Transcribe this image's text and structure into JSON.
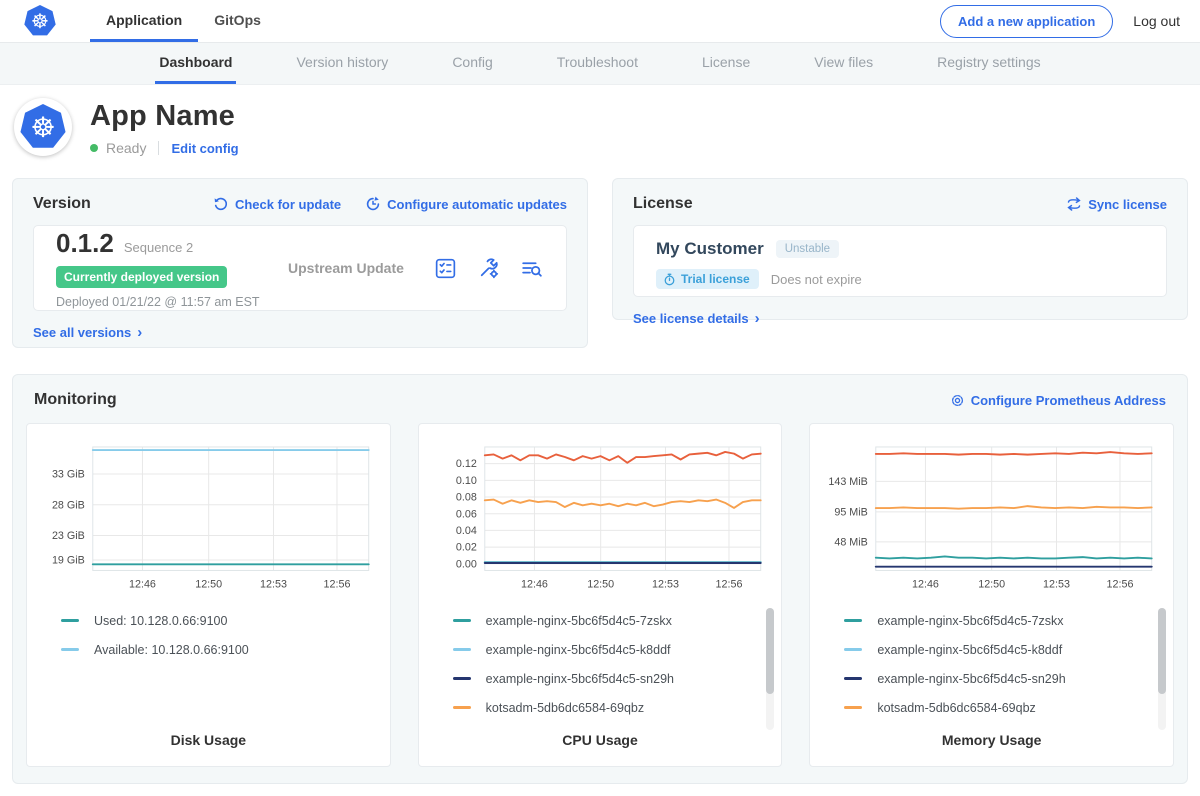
{
  "topnav": {
    "brand_icon": "kubernetes-logo",
    "tabs": [
      {
        "label": "Application",
        "active": true
      },
      {
        "label": "GitOps",
        "active": false
      }
    ],
    "add_app_button": "Add a new application",
    "logout_label": "Log out"
  },
  "subnav": {
    "tabs": [
      {
        "label": "Dashboard",
        "active": true
      },
      {
        "label": "Version history",
        "active": false
      },
      {
        "label": "Config",
        "active": false
      },
      {
        "label": "Troubleshoot",
        "active": false
      },
      {
        "label": "License",
        "active": false
      },
      {
        "label": "View files",
        "active": false
      },
      {
        "label": "Registry settings",
        "active": false
      }
    ]
  },
  "app_header": {
    "title": "App Name",
    "status": "Ready",
    "edit_config_label": "Edit config",
    "app_icon": "kubernetes-logo"
  },
  "version_card": {
    "title": "Version",
    "check_update_label": "Check for update",
    "auto_updates_label": "Configure automatic updates",
    "version_number": "0.1.2",
    "sequence": "Sequence 2",
    "deployed_badge": "Currently deployed version",
    "deployed_at": "Deployed 01/21/22 @ 11:57 am EST",
    "update_type": "Upstream Update",
    "action_icons": [
      "preflight-checks-icon",
      "config-wrench-icon",
      "deploy-logs-icon"
    ],
    "see_all_label": "See all versions"
  },
  "license_card": {
    "title": "License",
    "sync_label": "Sync license",
    "customer_name": "My Customer",
    "channel_badge": "Unstable",
    "type_badge": "Trial license",
    "expiry": "Does not expire",
    "details_label": "See license details"
  },
  "monitoring": {
    "title": "Monitoring",
    "configure_label": "Configure Prometheus Address"
  },
  "colors": {
    "accent_blue": "#326de6",
    "badge_green": "#45c789",
    "status_green": "#44bb66",
    "panel_bg": "#f4f8f9",
    "series_teal": "#2f9f9f",
    "series_lightblue": "#86cbea",
    "series_navy": "#25366f",
    "series_orange": "#f7a14e",
    "series_red": "#e8603c"
  },
  "chart_data": [
    {
      "type": "line",
      "title": "Disk Usage",
      "x_ticks": [
        "12:46",
        "12:50",
        "12:53",
        "12:56"
      ],
      "y_ticks": [
        "33 GiB",
        "28 GiB",
        "23 GiB",
        "19 GiB"
      ],
      "y_tick_values": [
        33,
        28,
        23,
        19
      ],
      "ylim": [
        17.3,
        37.4
      ],
      "grid": true,
      "legend_position": "bottom-left",
      "legend": [
        {
          "label": "Used: 10.128.0.66:9100",
          "color": "#2f9f9f"
        },
        {
          "label": "Available: 10.128.0.66:9100",
          "color": "#86cbea"
        }
      ],
      "series": [
        {
          "name": "Used: 10.128.0.66:9100",
          "color": "#2f9f9f",
          "values": [
            18.3,
            18.3,
            18.3,
            18.3,
            18.3,
            18.3
          ]
        },
        {
          "name": "Available: 10.128.0.66:9100",
          "color": "#86cbea",
          "values": [
            36.9,
            36.9,
            36.9,
            36.9,
            36.9,
            36.9
          ]
        }
      ]
    },
    {
      "type": "line",
      "title": "CPU Usage",
      "x_ticks": [
        "12:46",
        "12:50",
        "12:53",
        "12:56"
      ],
      "y_ticks": [
        "0.12",
        "0.10",
        "0.08",
        "0.06",
        "0.04",
        "0.02",
        "0.00"
      ],
      "y_tick_values": [
        0.12,
        0.1,
        0.08,
        0.06,
        0.04,
        0.02,
        0.0
      ],
      "ylim": [
        -0.008,
        0.14
      ],
      "grid": true,
      "legend_position": "bottom-left",
      "legend": [
        {
          "label": "example-nginx-5bc6f5d4c5-7zskx",
          "color": "#2f9f9f"
        },
        {
          "label": "example-nginx-5bc6f5d4c5-k8ddf",
          "color": "#86cbea"
        },
        {
          "label": "example-nginx-5bc6f5d4c5-sn29h",
          "color": "#25366f"
        },
        {
          "label": "kotsadm-5db6dc6584-69qbz",
          "color": "#f7a14e"
        }
      ],
      "series": [
        {
          "name": "example-nginx-5bc6f5d4c5-7zskx",
          "color": "#2f9f9f",
          "values": [
            0.002,
            0.002,
            0.002,
            0.002,
            0.002,
            0.002,
            0.002,
            0.002
          ]
        },
        {
          "name": "example-nginx-5bc6f5d4c5-k8ddf",
          "color": "#86cbea",
          "values": [
            0.0015,
            0.0015,
            0.0015,
            0.0015,
            0.0015,
            0.0015,
            0.0015,
            0.0015
          ]
        },
        {
          "name": "example-nginx-5bc6f5d4c5-sn29h",
          "color": "#25366f",
          "values": [
            0.001,
            0.001,
            0.001,
            0.001,
            0.001,
            0.001,
            0.001,
            0.001
          ]
        },
        {
          "name": "kotsadm-5db6dc6584-69qbz",
          "color": "#f7a14e",
          "values": [
            0.076,
            0.077,
            0.072,
            0.076,
            0.073,
            0.076,
            0.074,
            0.075,
            0.074,
            0.068,
            0.073,
            0.07,
            0.072,
            0.07,
            0.072,
            0.069,
            0.072,
            0.07,
            0.073,
            0.069,
            0.071,
            0.074,
            0.075,
            0.074,
            0.076,
            0.075,
            0.077,
            0.073,
            0.067,
            0.074,
            0.076,
            0.076
          ]
        },
        {
          "name": "",
          "color": "#e8603c",
          "values": [
            0.13,
            0.131,
            0.126,
            0.13,
            0.124,
            0.13,
            0.13,
            0.126,
            0.131,
            0.128,
            0.124,
            0.129,
            0.126,
            0.129,
            0.124,
            0.129,
            0.121,
            0.128,
            0.128,
            0.129,
            0.13,
            0.131,
            0.125,
            0.131,
            0.132,
            0.133,
            0.13,
            0.134,
            0.132,
            0.126,
            0.131,
            0.132
          ]
        }
      ]
    },
    {
      "type": "line",
      "title": "Memory Usage",
      "x_ticks": [
        "12:46",
        "12:50",
        "12:53",
        "12:56"
      ],
      "y_ticks": [
        "143 MiB",
        "95 MiB",
        "48 MiB"
      ],
      "y_tick_values": [
        143,
        95,
        48
      ],
      "ylim": [
        3,
        197
      ],
      "grid": true,
      "legend_position": "bottom-left",
      "legend": [
        {
          "label": "example-nginx-5bc6f5d4c5-7zskx",
          "color": "#2f9f9f"
        },
        {
          "label": "example-nginx-5bc6f5d4c5-k8ddf",
          "color": "#86cbea"
        },
        {
          "label": "example-nginx-5bc6f5d4c5-sn29h",
          "color": "#25366f"
        },
        {
          "label": "kotsadm-5db6dc6584-69qbz",
          "color": "#f7a14e"
        }
      ],
      "series": [
        {
          "name": "example-nginx-5bc6f5d4c5-7zskx",
          "color": "#2f9f9f",
          "values": [
            23,
            22,
            23,
            22,
            23,
            25,
            23,
            23,
            22,
            23,
            22,
            23,
            22,
            22,
            23,
            24,
            22,
            23,
            22,
            23,
            22
          ]
        },
        {
          "name": "example-nginx-5bc6f5d4c5-sn29h",
          "color": "#25366f",
          "values": [
            9,
            9,
            9,
            9,
            9,
            9
          ]
        },
        {
          "name": "kotsadm-5db6dc6584-69qbz",
          "color": "#f7a14e",
          "values": [
            101,
            101,
            102,
            101,
            101,
            101,
            100,
            101,
            101,
            102,
            101,
            104,
            102,
            101,
            102,
            101,
            103,
            102,
            102,
            101,
            102
          ]
        },
        {
          "name": "",
          "color": "#e8603c",
          "values": [
            186,
            186,
            187,
            186,
            186,
            186,
            185,
            186,
            186,
            185,
            186,
            185,
            186,
            187,
            186,
            188,
            187,
            189,
            187,
            186,
            187
          ]
        }
      ]
    }
  ]
}
